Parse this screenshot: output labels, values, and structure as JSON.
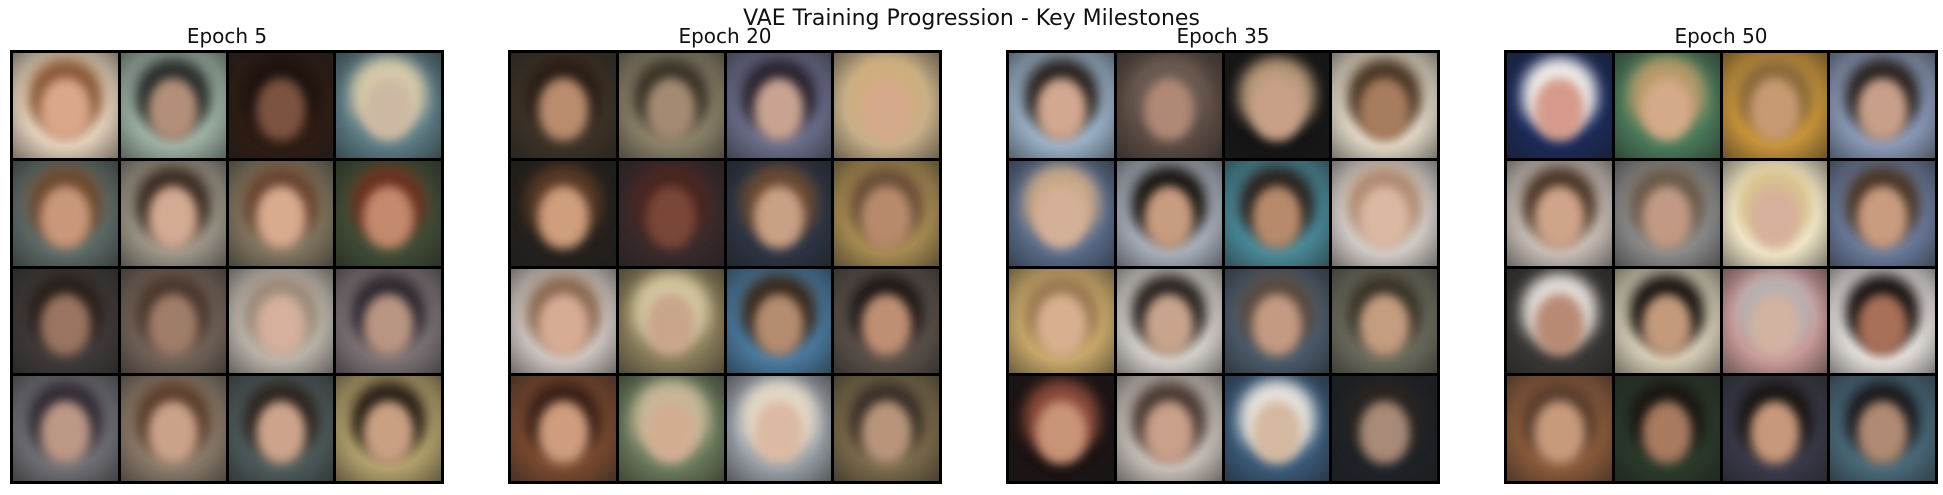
{
  "figure": {
    "suptitle": "VAE Training Progression - Key Milestones"
  },
  "panels": [
    {
      "title": "Epoch 5",
      "cells": [
        {
          "bg": "#e4d2bc",
          "hair": "#8a5a38",
          "skin": "#d9a789"
        },
        {
          "bg": "#9fb3a6",
          "hair": "#2a2d2c",
          "skin": "#b38f79"
        },
        {
          "bg": "#2e1c14",
          "hair": "#1d130e",
          "skin": "#7c5340"
        },
        {
          "bg": "#5d7c86",
          "hair": "#d7caa8",
          "skin": "#cdb9a3"
        },
        {
          "bg": "#5c6a67",
          "hair": "#6e4a30",
          "skin": "#c99779"
        },
        {
          "bg": "#9d9688",
          "hair": "#3c2d24",
          "skin": "#d3aa92"
        },
        {
          "bg": "#7f745f",
          "hair": "#6a4530",
          "skin": "#d8ab8f"
        },
        {
          "bg": "#3f4c36",
          "hair": "#6b3220",
          "skin": "#c38a6d"
        },
        {
          "bg": "#3e3a39",
          "hair": "#2a201b",
          "skin": "#9a7460"
        },
        {
          "bg": "#716257",
          "hair": "#4b382e",
          "skin": "#a07d69"
        },
        {
          "bg": "#b9b3a9",
          "hair": "#9c8a7a",
          "skin": "#d5b09c"
        },
        {
          "bg": "#7d7275",
          "hair": "#2e2930",
          "skin": "#b99583"
        },
        {
          "bg": "#6f6f75",
          "hair": "#322b33",
          "skin": "#bc9786"
        },
        {
          "bg": "#8a7a6b",
          "hair": "#5c3f2c",
          "skin": "#caa289"
        },
        {
          "bg": "#4e5b5c",
          "hair": "#2d2520",
          "skin": "#cda48b"
        },
        {
          "bg": "#b4a26d",
          "hair": "#2a2018",
          "skin": "#caa083"
        }
      ]
    },
    {
      "title": "Epoch 20",
      "cells": [
        {
          "bg": "#3c3226",
          "hair": "#2a1e16",
          "skin": "#b98c6e"
        },
        {
          "bg": "#8a8068",
          "hair": "#3a3328",
          "skin": "#a48a73"
        },
        {
          "bg": "#6b6d8a",
          "hair": "#2a2430",
          "skin": "#c9a392"
        },
        {
          "bg": "#c8b08a",
          "hair": "#cfae7e",
          "skin": "#d5a98b"
        },
        {
          "bg": "#24201c",
          "hair": "#5a3a26",
          "skin": "#cf9e7c"
        },
        {
          "bg": "#3a2a2c",
          "hair": "#4a2620",
          "skin": "#7a4638"
        },
        {
          "bg": "#2c3444",
          "hair": "#6a4a32",
          "skin": "#c8a085"
        },
        {
          "bg": "#a78b52",
          "hair": "#6a5038",
          "skin": "#b88a6c"
        },
        {
          "bg": "#cfc6c2",
          "hair": "#8a6a52",
          "skin": "#d8ac94"
        },
        {
          "bg": "#8a7e5a",
          "hair": "#d3c6a0",
          "skin": "#c9a58c"
        },
        {
          "bg": "#4a7aa0",
          "hair": "#3a2a1e",
          "skin": "#b48c70"
        },
        {
          "bg": "#5a5048",
          "hair": "#1f1a18",
          "skin": "#bf8f74"
        },
        {
          "bg": "#7a4a30",
          "hair": "#3a2018",
          "skin": "#cf9d7d"
        },
        {
          "bg": "#6a7a5c",
          "hair": "#c8b898",
          "skin": "#d2ad92"
        },
        {
          "bg": "#9aa0a8",
          "hair": "#e2d8c6",
          "skin": "#dcb9a3"
        },
        {
          "bg": "#7a6a4a",
          "hair": "#3a3028",
          "skin": "#b8957a"
        }
      ]
    },
    {
      "title": "Epoch 35",
      "cells": [
        {
          "bg": "#9ab2c8",
          "hair": "#2a2220",
          "skin": "#d2a890"
        },
        {
          "bg": "#5a4a42",
          "hair": "#6a5a50",
          "skin": "#b08876"
        },
        {
          "bg": "#141414",
          "hair": "#b89a7a",
          "skin": "#c8a088"
        },
        {
          "bg": "#e2d8c6",
          "hair": "#4a3624",
          "skin": "#a87c5e"
        },
        {
          "bg": "#5a6c8a",
          "hair": "#caa888",
          "skin": "#d4b098"
        },
        {
          "bg": "#a8b0bc",
          "hair": "#1a1612",
          "skin": "#c89c80"
        },
        {
          "bg": "#4a8a9a",
          "hair": "#2a2420",
          "skin": "#b88a6c"
        },
        {
          "bg": "#d2ccc8",
          "hair": "#b08a70",
          "skin": "#dbb8a2"
        },
        {
          "bg": "#c8a86a",
          "hair": "#9a7a52",
          "skin": "#d8b090"
        },
        {
          "bg": "#d6d2cc",
          "hair": "#2a2422",
          "skin": "#c8a48c"
        },
        {
          "bg": "#4a5a6a",
          "hair": "#5a4a40",
          "skin": "#c49a82"
        },
        {
          "bg": "#6a6a5c",
          "hair": "#3a3428",
          "skin": "#c49c80"
        },
        {
          "bg": "#1a1212",
          "hair": "#8a4a3a",
          "skin": "#c89478"
        },
        {
          "bg": "#c8c0b8",
          "hair": "#4a3a32",
          "skin": "#c9a08a"
        },
        {
          "bg": "#3a5a7a",
          "hair": "#e6e2dc",
          "skin": "#d4b8a0"
        },
        {
          "bg": "#1e2226",
          "hair": "#2a2420",
          "skin": "#a88a78"
        }
      ]
    },
    {
      "title": "Epoch 50",
      "cells": [
        {
          "bg": "#1a2a5a",
          "hair": "#f0ecea",
          "skin": "#d69a8a"
        },
        {
          "bg": "#4a7a5a",
          "hair": "#b89a6a",
          "skin": "#d4aa88"
        },
        {
          "bg": "#c8943a",
          "hair": "#8a6a3a",
          "skin": "#c89a72"
        },
        {
          "bg": "#8a9ab8",
          "hair": "#2a2220",
          "skin": "#c8a08a"
        },
        {
          "bg": "#c8beb6",
          "hair": "#4a3628",
          "skin": "#cfa48a"
        },
        {
          "bg": "#8a8a8a",
          "hair": "#6a5a4a",
          "skin": "#c29a84"
        },
        {
          "bg": "#f0e6c8",
          "hair": "#d8c290",
          "skin": "#d6b09a"
        },
        {
          "bg": "#6a7a9a",
          "hair": "#4a3628",
          "skin": "#c99c80"
        },
        {
          "bg": "#3a3836",
          "hair": "#e2ddd8",
          "skin": "#b88a74"
        },
        {
          "bg": "#d8cfb8",
          "hair": "#1a1612",
          "skin": "#c49a7c"
        },
        {
          "bg": "#c89a98",
          "hair": "#b8b0b0",
          "skin": "#d2b2a0"
        },
        {
          "bg": "#e6e2de",
          "hair": "#1a1414",
          "skin": "#a87058"
        },
        {
          "bg": "#8a5a3a",
          "hair": "#5a3e2e",
          "skin": "#c89a7c"
        },
        {
          "bg": "#2a3a2a",
          "hair": "#1a1612",
          "skin": "#a87a60"
        },
        {
          "bg": "#3a3a4a",
          "hair": "#1a1614",
          "skin": "#c8987c"
        },
        {
          "bg": "#4a6a7a",
          "hair": "#1a1a1e",
          "skin": "#b08a72"
        }
      ]
    }
  ]
}
